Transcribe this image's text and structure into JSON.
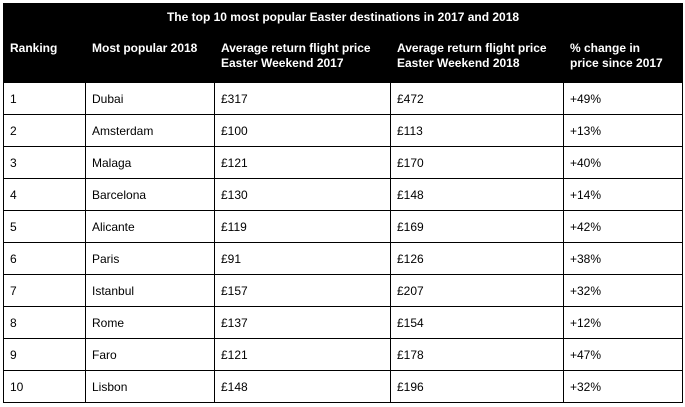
{
  "table": {
    "title": "The top 10 most popular Easter destinations in 2017 and 2018",
    "headers": [
      {
        "line1": "Ranking",
        "line2": ""
      },
      {
        "line1": "Most popular 2018",
        "line2": ""
      },
      {
        "line1": "Average return flight price",
        "line2": "Easter Weekend 2017"
      },
      {
        "line1": "Average return flight price",
        "line2": "Easter Weekend 2018"
      },
      {
        "line1": "% change in",
        "line2": "price since 2017"
      }
    ],
    "rows": [
      [
        "1",
        "Dubai",
        "£317",
        "£472",
        "+49%"
      ],
      [
        "2",
        "Amsterdam",
        "£100",
        "£113",
        "+13%"
      ],
      [
        "3",
        "Malaga",
        "£121",
        "£170",
        "+40%"
      ],
      [
        "4",
        "Barcelona",
        "£130",
        "£148",
        "+14%"
      ],
      [
        "5",
        "Alicante",
        "£119",
        "£169",
        "+42%"
      ],
      [
        "6",
        "Paris",
        "£91",
        "£126",
        "+38%"
      ],
      [
        "7",
        "Istanbul",
        "£157",
        "£207",
        "+32%"
      ],
      [
        "8",
        "Rome",
        "£137",
        "£154",
        "+12%"
      ],
      [
        "9",
        "Faro",
        "£121",
        "£178",
        "+47%"
      ],
      [
        "10",
        "Lisbon",
        "£148",
        "£196",
        "+32%"
      ]
    ]
  }
}
